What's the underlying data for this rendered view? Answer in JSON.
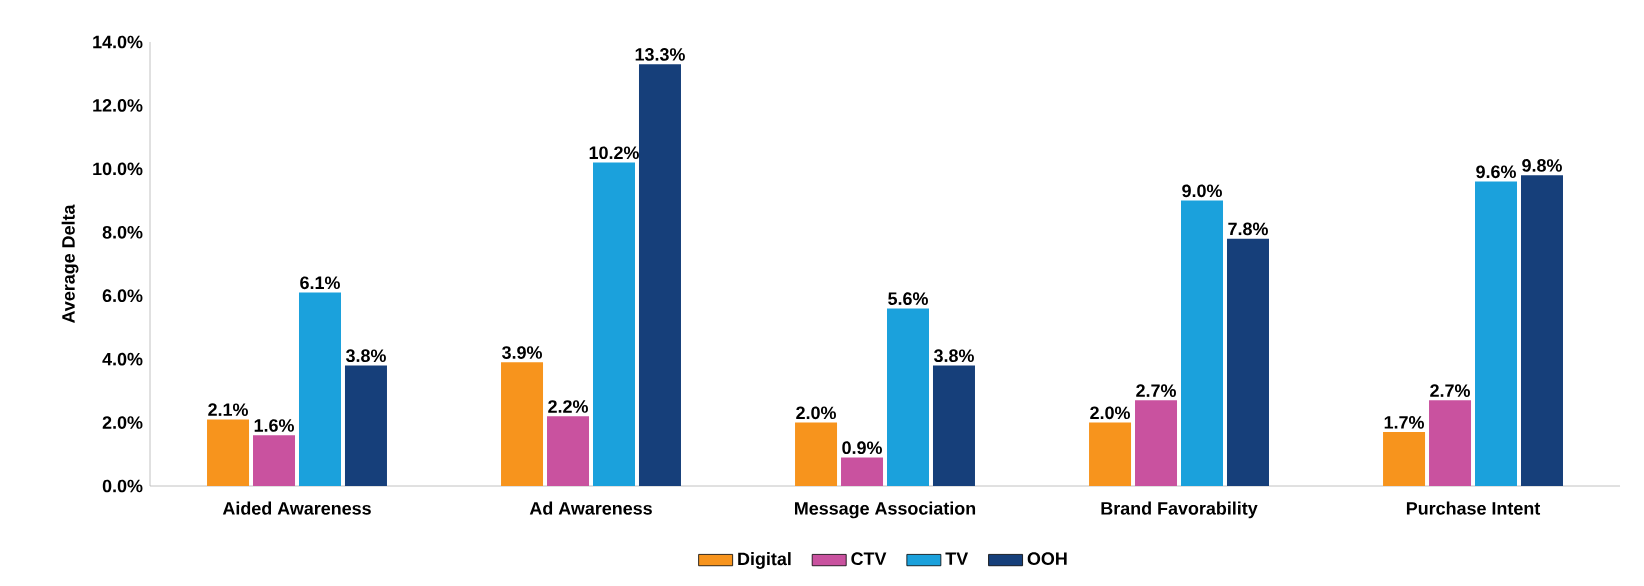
{
  "chart_data": {
    "type": "bar",
    "ylabel": "Average Delta",
    "categories": [
      "Aided Awareness",
      "Ad Awareness",
      "Message Association",
      "Brand Favorability",
      "Purchase Intent"
    ],
    "ylim": [
      0,
      14
    ],
    "yticks": [
      {
        "value": 0,
        "label": "0.0%"
      },
      {
        "value": 2,
        "label": "2.0%"
      },
      {
        "value": 4,
        "label": "4.0%"
      },
      {
        "value": 6,
        "label": "6.0%"
      },
      {
        "value": 8,
        "label": "8.0%"
      },
      {
        "value": 10,
        "label": "10.0%"
      },
      {
        "value": 12,
        "label": "12.0%"
      },
      {
        "value": 14,
        "label": "14.0%"
      }
    ],
    "legend": "bottom",
    "series": [
      {
        "name": "Digital",
        "color": "#f7941d",
        "values": [
          2.1,
          3.9,
          2.0,
          2.0,
          1.7
        ],
        "value_labels": [
          "2.1%",
          "3.9%",
          "2.0%",
          "2.0%",
          "1.7%"
        ]
      },
      {
        "name": "CTV",
        "color": "#c9529f",
        "values": [
          1.6,
          2.2,
          0.9,
          2.7,
          2.7
        ],
        "value_labels": [
          "1.6%",
          "2.2%",
          "0.9%",
          "2.7%",
          "2.7%"
        ]
      },
      {
        "name": "TV",
        "color": "#1ba1dc",
        "values": [
          6.1,
          10.2,
          5.6,
          9.0,
          9.6
        ],
        "value_labels": [
          "6.1%",
          "10.2%",
          "5.6%",
          "9.0%",
          "9.6%"
        ]
      },
      {
        "name": "OOH",
        "color": "#163f7a",
        "values": [
          3.8,
          13.3,
          3.8,
          7.8,
          9.8
        ],
        "value_labels": [
          "3.8%",
          "13.3%",
          "3.8%",
          "7.8%",
          "9.8%"
        ]
      }
    ]
  }
}
